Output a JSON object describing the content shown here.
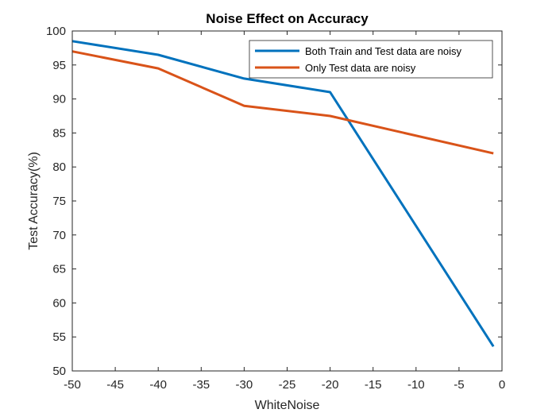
{
  "chart_data": {
    "type": "line",
    "title": "Noise Effect on Accuracy",
    "xlabel": "WhiteNoise",
    "ylabel": "Test Accuracy(%)",
    "xlim": [
      -50,
      0
    ],
    "ylim": [
      50,
      100
    ],
    "xticks": [
      -50,
      -45,
      -40,
      -35,
      -30,
      -25,
      -20,
      -15,
      -10,
      -5,
      0
    ],
    "yticks": [
      50,
      55,
      60,
      65,
      70,
      75,
      80,
      85,
      90,
      95,
      100
    ],
    "grid": false,
    "legend_position": "top-right",
    "series": [
      {
        "name": "Both Train and Test data are noisy",
        "color": "#0072BD",
        "x": [
          -50,
          -40,
          -30,
          -20,
          -1
        ],
        "y": [
          98.5,
          96.5,
          93,
          91,
          53.6
        ]
      },
      {
        "name": "Only Test data are noisy",
        "color": "#D95319",
        "x": [
          -50,
          -40,
          -30,
          -20,
          -1
        ],
        "y": [
          97,
          94.5,
          89,
          87.5,
          82
        ]
      }
    ]
  }
}
